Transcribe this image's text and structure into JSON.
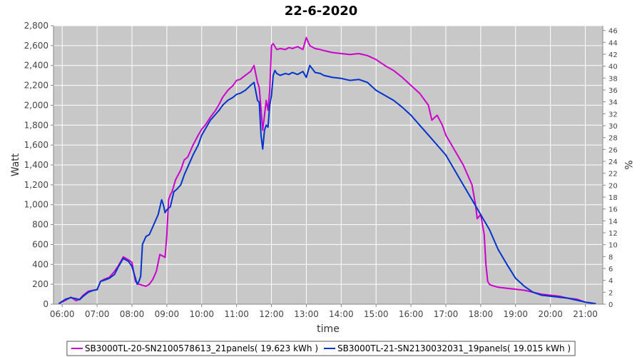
{
  "chart_data": {
    "type": "line",
    "title": "22-6-2020",
    "xlabel": "time",
    "ylabel": "Watt",
    "y2label": "%",
    "xlim": [
      5.75,
      21.5
    ],
    "ylim": [
      0,
      2800
    ],
    "y2lim": [
      0,
      46.8
    ],
    "x_ticks": [
      6,
      7,
      8,
      9,
      10,
      11,
      12,
      13,
      14,
      15,
      16,
      17,
      18,
      19,
      20,
      21
    ],
    "x_tick_labels": [
      "06:00",
      "07:00",
      "08:00",
      "09:00",
      "10:00",
      "11:00",
      "12:00",
      "13:00",
      "14:00",
      "15:00",
      "16:00",
      "17:00",
      "18:00",
      "19:00",
      "20:00",
      "21:00"
    ],
    "y_ticks": [
      0,
      200,
      400,
      600,
      800,
      1000,
      1200,
      1400,
      1600,
      1800,
      2000,
      2200,
      2400,
      2600,
      2800
    ],
    "y_tick_labels": [
      "0",
      "200",
      "400",
      "600",
      "800",
      "1,000",
      "1,200",
      "1,400",
      "1,600",
      "1,800",
      "2,000",
      "2,200",
      "2,400",
      "2,600",
      "2,800"
    ],
    "y2_ticks": [
      0,
      2,
      4,
      6,
      8,
      10,
      12,
      14,
      16,
      18,
      20,
      22,
      24,
      26,
      28,
      30,
      32,
      34,
      36,
      38,
      40,
      42,
      44,
      46
    ],
    "y2_tick_labels": [
      "0",
      "2",
      "4",
      "6",
      "8",
      "10",
      "12",
      "14",
      "16",
      "18",
      "20",
      "22",
      "24",
      "26",
      "28",
      "30",
      "32",
      "34",
      "36",
      "38",
      "40",
      "42",
      "44",
      "46"
    ],
    "grid": true,
    "legend_position": "bottom",
    "series": [
      {
        "name": "SB3000TL-20-SN2100578613_21panels( 19.623 kWh )",
        "color": "#cc00cc",
        "x": [
          5.9,
          6.1,
          6.25,
          6.4,
          6.5,
          6.6,
          6.75,
          6.9,
          7.0,
          7.1,
          7.2,
          7.35,
          7.5,
          7.6,
          7.75,
          7.9,
          8.0,
          8.1,
          8.2,
          8.3,
          8.4,
          8.5,
          8.6,
          8.7,
          8.8,
          8.9,
          8.95,
          9.0,
          9.05,
          9.1,
          9.15,
          9.25,
          9.4,
          9.5,
          9.6,
          9.75,
          9.9,
          10.0,
          10.1,
          10.25,
          10.4,
          10.5,
          10.6,
          10.75,
          10.9,
          11.0,
          11.1,
          11.25,
          11.4,
          11.5,
          11.6,
          11.65,
          11.75,
          11.8,
          11.85,
          11.9,
          11.95,
          12.0,
          12.05,
          12.15,
          12.25,
          12.4,
          12.5,
          12.6,
          12.75,
          12.9,
          13.0,
          13.1,
          13.25,
          13.4,
          13.5,
          13.75,
          14.0,
          14.25,
          14.5,
          14.75,
          15.0,
          15.25,
          15.5,
          15.75,
          16.0,
          16.25,
          16.5,
          16.6,
          16.75,
          16.9,
          17.0,
          17.25,
          17.5,
          17.75,
          17.85,
          17.9,
          18.0,
          18.1,
          18.15,
          18.2,
          18.25,
          18.3,
          18.4,
          18.5,
          18.75,
          19.0,
          19.25,
          19.5,
          19.75,
          20.0,
          20.25,
          20.5,
          20.75,
          21.0,
          21.2,
          21.3
        ],
        "y": [
          5,
          40,
          70,
          35,
          50,
          90,
          130,
          140,
          145,
          230,
          250,
          270,
          330,
          380,
          475,
          445,
          420,
          230,
          200,
          190,
          180,
          200,
          250,
          330,
          500,
          480,
          470,
          700,
          1050,
          1100,
          1130,
          1250,
          1350,
          1450,
          1480,
          1600,
          1700,
          1760,
          1800,
          1880,
          1950,
          2010,
          2080,
          2150,
          2200,
          2250,
          2260,
          2300,
          2340,
          2400,
          2230,
          2180,
          1750,
          1900,
          2050,
          1950,
          2150,
          2600,
          2620,
          2560,
          2570,
          2560,
          2580,
          2570,
          2590,
          2560,
          2680,
          2600,
          2570,
          2560,
          2550,
          2530,
          2520,
          2510,
          2520,
          2500,
          2460,
          2400,
          2350,
          2280,
          2200,
          2120,
          2000,
          1850,
          1900,
          1800,
          1700,
          1550,
          1400,
          1200,
          1000,
          860,
          900,
          700,
          400,
          230,
          200,
          190,
          180,
          170,
          160,
          150,
          140,
          120,
          100,
          90,
          80,
          60,
          50,
          20,
          10,
          5
        ]
      },
      {
        "name": "SB3000TL-21-SN2130032031_19panels( 19.015 kWh )",
        "color": "#0033cc",
        "x": [
          5.9,
          6.1,
          6.25,
          6.4,
          6.5,
          6.6,
          6.75,
          6.9,
          7.0,
          7.1,
          7.2,
          7.35,
          7.5,
          7.6,
          7.75,
          7.9,
          8.0,
          8.1,
          8.15,
          8.2,
          8.25,
          8.3,
          8.4,
          8.5,
          8.6,
          8.75,
          8.85,
          8.9,
          8.95,
          9.0,
          9.1,
          9.2,
          9.3,
          9.4,
          9.5,
          9.6,
          9.75,
          9.9,
          10.0,
          10.1,
          10.25,
          10.4,
          10.5,
          10.6,
          10.75,
          10.9,
          11.0,
          11.1,
          11.25,
          11.4,
          11.5,
          11.6,
          11.65,
          11.7,
          11.75,
          11.8,
          11.85,
          11.9,
          11.95,
          12.0,
          12.05,
          12.1,
          12.15,
          12.25,
          12.4,
          12.5,
          12.6,
          12.75,
          12.9,
          13.0,
          13.1,
          13.25,
          13.4,
          13.5,
          13.75,
          14.0,
          14.25,
          14.5,
          14.75,
          15.0,
          15.25,
          15.5,
          15.75,
          16.0,
          16.25,
          16.5,
          16.75,
          17.0,
          17.25,
          17.5,
          17.75,
          18.0,
          18.25,
          18.5,
          18.75,
          19.0,
          19.25,
          19.5,
          19.75,
          20.0,
          20.25,
          20.5,
          20.75,
          21.0,
          21.2,
          21.3
        ],
        "y": [
          5,
          50,
          65,
          55,
          45,
          80,
          120,
          140,
          145,
          230,
          240,
          260,
          300,
          370,
          460,
          430,
          380,
          260,
          200,
          230,
          280,
          600,
          680,
          700,
          780,
          900,
          1050,
          1000,
          920,
          950,
          980,
          1130,
          1160,
          1200,
          1300,
          1380,
          1500,
          1600,
          1700,
          1760,
          1850,
          1910,
          1950,
          2000,
          2050,
          2080,
          2110,
          2120,
          2150,
          2200,
          2230,
          2050,
          2030,
          1700,
          1560,
          1750,
          1800,
          1780,
          2000,
          2100,
          2300,
          2350,
          2320,
          2300,
          2320,
          2310,
          2330,
          2310,
          2340,
          2280,
          2400,
          2330,
          2320,
          2300,
          2280,
          2270,
          2250,
          2260,
          2230,
          2150,
          2100,
          2050,
          1980,
          1900,
          1800,
          1700,
          1600,
          1500,
          1350,
          1200,
          1050,
          900,
          750,
          550,
          400,
          260,
          180,
          120,
          90,
          80,
          70,
          60,
          40,
          20,
          10,
          5
        ]
      }
    ]
  }
}
